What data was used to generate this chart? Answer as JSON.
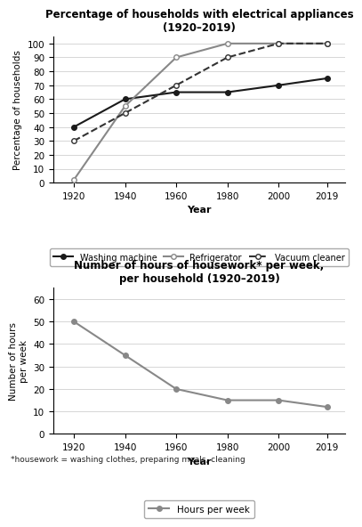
{
  "years": [
    1920,
    1940,
    1960,
    1980,
    2000,
    2019
  ],
  "washing_machine": [
    40,
    60,
    65,
    65,
    70,
    75
  ],
  "refrigerator": [
    2,
    55,
    90,
    100,
    100,
    100
  ],
  "vacuum_cleaner": [
    30,
    50,
    70,
    90,
    100,
    100
  ],
  "hours_per_week": [
    50,
    35,
    20,
    15,
    15,
    12
  ],
  "title1": "Percentage of households with electrical appliances\n(1920–2019)",
  "title2": "Number of hours of housework* per week,\nper household (1920–2019)",
  "ylabel1": "Percentage of households",
  "ylabel2": "Number of hours\nper week",
  "xlabel": "Year",
  "footnote": "*housework = washing clothes, preparing meals, cleaning",
  "line_color_wm": "#1a1a1a",
  "line_color_ref": "#888888",
  "line_color_vc": "#333333",
  "line_color_hours": "#888888",
  "ylim1": [
    0,
    105
  ],
  "yticks1": [
    0,
    10,
    20,
    30,
    40,
    50,
    60,
    70,
    80,
    90,
    100
  ],
  "ylim2": [
    0,
    65
  ],
  "yticks2": [
    0,
    10,
    20,
    30,
    40,
    50,
    60
  ]
}
